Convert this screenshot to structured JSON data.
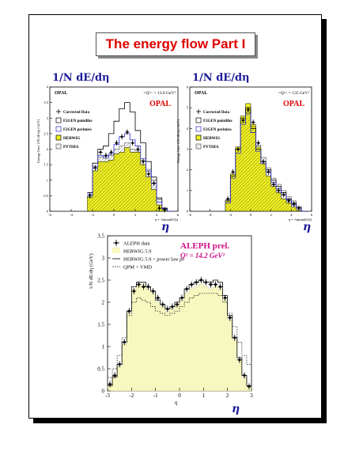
{
  "slide": {
    "title": "The energy flow Part I",
    "formula_left": "1/N dE/dη",
    "formula_right": "1/N dE/dη",
    "eta_label": "η"
  },
  "colors": {
    "title": "#e00000",
    "formula": "#1b1b9a",
    "herwig_fill": "#f0f020",
    "opal_red": "#e00000",
    "aleph_magenta": "#d0108a",
    "aleph_fill": "#f7f7c0"
  },
  "chart_data": [
    {
      "type": "line",
      "experiment": "OPAL",
      "q2_label": "<Q²> = 13.0 GeV²",
      "ylabel": "Energy flow  1/N dE/dη  [GeV]",
      "xlabel": "η = -ln(tan(θ/2))",
      "xlim": [
        -6,
        6
      ],
      "ylim": [
        0,
        4
      ],
      "xticks": [
        -6,
        -4,
        -2,
        0,
        2,
        4,
        6
      ],
      "yticks": [
        0,
        0.5,
        1,
        1.5,
        2,
        2.5,
        3,
        3.5,
        4
      ],
      "legend": [
        "Corrected Data",
        "F2GEN pointlike",
        "F2GEN perimiss",
        "HERWIG",
        "PYTHIA"
      ],
      "x": [
        -2.25,
        -1.75,
        -1.25,
        -0.75,
        -0.25,
        0.25,
        0.75,
        1.25,
        1.75,
        2.25,
        2.75,
        3.25,
        3.75,
        4.25,
        4.75,
        5.25
      ],
      "series": [
        {
          "name": "Corrected Data",
          "values": [
            0.5,
            1.4,
            1.9,
            1.8,
            1.9,
            2.2,
            2.4,
            2.55,
            2.2,
            2.0,
            1.6,
            1.2,
            0.9,
            0.1,
            0.05,
            0
          ]
        },
        {
          "name": "F2GEN pointlike",
          "values": [
            0.6,
            1.55,
            2.0,
            2.1,
            2.5,
            2.9,
            3.3,
            3.5,
            3.2,
            2.6,
            2.2,
            1.6,
            1.1,
            0.4,
            0.1,
            0
          ]
        },
        {
          "name": "F2GEN perimiss",
          "values": [
            0.55,
            1.45,
            1.8,
            1.75,
            1.85,
            2.15,
            2.4,
            2.5,
            2.3,
            2.1,
            1.7,
            1.3,
            0.9,
            0.3,
            0.08,
            0
          ]
        },
        {
          "name": "HERWIG",
          "values": [
            0.45,
            1.3,
            1.6,
            1.6,
            1.65,
            1.85,
            1.9,
            2.05,
            1.9,
            1.9,
            1.5,
            1.1,
            0.7,
            0.2,
            0.05,
            0
          ]
        },
        {
          "name": "PYTHIA",
          "values": [
            0.5,
            1.4,
            1.75,
            1.7,
            1.8,
            2.0,
            2.1,
            2.2,
            2.0,
            1.95,
            1.65,
            1.35,
            1.0,
            0.45,
            0.1,
            0
          ]
        }
      ]
    },
    {
      "type": "line",
      "experiment": "OPAL",
      "q2_label": "<Q²> = 135 GeV²",
      "ylabel": "Energy flow  1/N dE/dη  [GeV]",
      "xlabel": "η = -ln(tan(θ/2))",
      "xlim": [
        -6,
        6
      ],
      "ylim": [
        0,
        6
      ],
      "xticks": [
        -6,
        -4,
        -2,
        0,
        2,
        4,
        6
      ],
      "yticks": [
        0,
        1,
        2,
        3,
        4,
        5,
        6
      ],
      "legend": [
        "Corrected Data",
        "F2GEN pointlike",
        "F2GEN perimiss",
        "HERWIG",
        "PYTHIA"
      ],
      "x": [
        -2.25,
        -1.75,
        -1.25,
        -0.75,
        -0.25,
        0.25,
        0.75,
        1.25,
        1.75,
        2.25,
        2.75,
        3.25,
        3.75,
        4.25,
        4.75,
        5.25
      ],
      "series": [
        {
          "name": "Corrected Data",
          "values": [
            0.6,
            1.9,
            3.0,
            4.4,
            4.9,
            4.3,
            3.3,
            2.4,
            1.9,
            1.3,
            1.0,
            0.8,
            0.5,
            0.35,
            0.15,
            0
          ]
        },
        {
          "name": "F2GEN pointlike",
          "values": [
            0.5,
            1.7,
            3.0,
            4.5,
            5.0,
            4.0,
            3.0,
            2.4,
            2.0,
            1.5,
            1.2,
            0.9,
            0.6,
            0.4,
            0.2,
            0
          ]
        },
        {
          "name": "F2GEN perimiss",
          "values": [
            0.4,
            1.6,
            2.8,
            4.2,
            4.7,
            3.8,
            2.9,
            2.3,
            1.9,
            1.4,
            1.1,
            0.8,
            0.55,
            0.3,
            0.15,
            0
          ]
        },
        {
          "name": "HERWIG",
          "values": [
            0.5,
            1.8,
            3.1,
            4.6,
            5.2,
            4.2,
            3.1,
            2.3,
            1.7,
            1.2,
            0.9,
            0.6,
            0.4,
            0.2,
            0.05,
            0
          ]
        },
        {
          "name": "PYTHIA",
          "values": [
            0.55,
            1.8,
            3.0,
            4.3,
            4.8,
            4.1,
            3.2,
            2.6,
            2.1,
            1.6,
            1.3,
            1.0,
            0.7,
            0.5,
            0.2,
            0
          ]
        }
      ]
    },
    {
      "type": "line",
      "experiment": "ALEPH prel.",
      "q2_label": "Q² = 14.2 GeV²",
      "ylabel": "1/N dE/dη (GeV)",
      "xlabel": "η",
      "xlim": [
        -3,
        3
      ],
      "ylim": [
        0,
        3.5
      ],
      "xticks": [
        -3,
        -2,
        -1,
        0,
        1,
        2,
        3
      ],
      "yticks": [
        0,
        0.5,
        1,
        1.5,
        2,
        2.5,
        3,
        3.5
      ],
      "legend": [
        "ALEPH data",
        "HERWIG 5.9",
        "HERWIG 5.9 + power law pt",
        "QPM + VMD"
      ],
      "x": [
        -2.9,
        -2.7,
        -2.5,
        -2.3,
        -2.1,
        -1.9,
        -1.7,
        -1.5,
        -1.3,
        -1.1,
        -0.9,
        -0.7,
        -0.5,
        -0.3,
        -0.1,
        0.1,
        0.3,
        0.5,
        0.7,
        0.9,
        1.1,
        1.3,
        1.5,
        1.7,
        1.9,
        2.1,
        2.3,
        2.5,
        2.7,
        2.9
      ],
      "series": [
        {
          "name": "ALEPH data",
          "values": [
            0.15,
            0.35,
            0.6,
            1.1,
            1.8,
            2.25,
            2.4,
            2.35,
            2.35,
            2.25,
            2.1,
            1.95,
            1.85,
            1.9,
            1.95,
            2.1,
            2.3,
            2.4,
            2.45,
            2.5,
            2.45,
            2.4,
            2.4,
            2.35,
            2.1,
            1.65,
            1.2,
            0.7,
            0.35,
            0.1
          ]
        },
        {
          "name": "HERWIG 5.9",
          "values": [
            0.1,
            0.3,
            0.55,
            1.05,
            1.75,
            2.3,
            2.4,
            2.4,
            2.3,
            2.2,
            2.0,
            1.9,
            1.8,
            1.85,
            1.95,
            2.05,
            2.2,
            2.3,
            2.35,
            2.4,
            2.35,
            2.3,
            2.35,
            2.3,
            2.05,
            1.6,
            1.15,
            0.7,
            0.3,
            0.1
          ]
        },
        {
          "name": "HERWIG 5.9 + power law pt",
          "values": [
            0.12,
            0.32,
            0.6,
            1.1,
            1.8,
            2.35,
            2.45,
            2.45,
            2.35,
            2.25,
            2.05,
            1.95,
            1.85,
            1.9,
            2.0,
            2.1,
            2.3,
            2.4,
            2.45,
            2.5,
            2.45,
            2.45,
            2.5,
            2.45,
            2.15,
            1.7,
            1.2,
            0.75,
            0.35,
            0.12
          ]
        },
        {
          "name": "QPM + VMD",
          "values": [
            0.3,
            0.5,
            0.8,
            1.2,
            1.7,
            2.0,
            2.1,
            2.05,
            2.0,
            1.9,
            1.8,
            1.75,
            1.7,
            1.75,
            1.8,
            1.9,
            2.0,
            2.1,
            2.15,
            2.2,
            2.2,
            2.2,
            2.2,
            2.15,
            2.0,
            1.75,
            1.45,
            1.1,
            0.8,
            0.6
          ]
        }
      ]
    }
  ]
}
